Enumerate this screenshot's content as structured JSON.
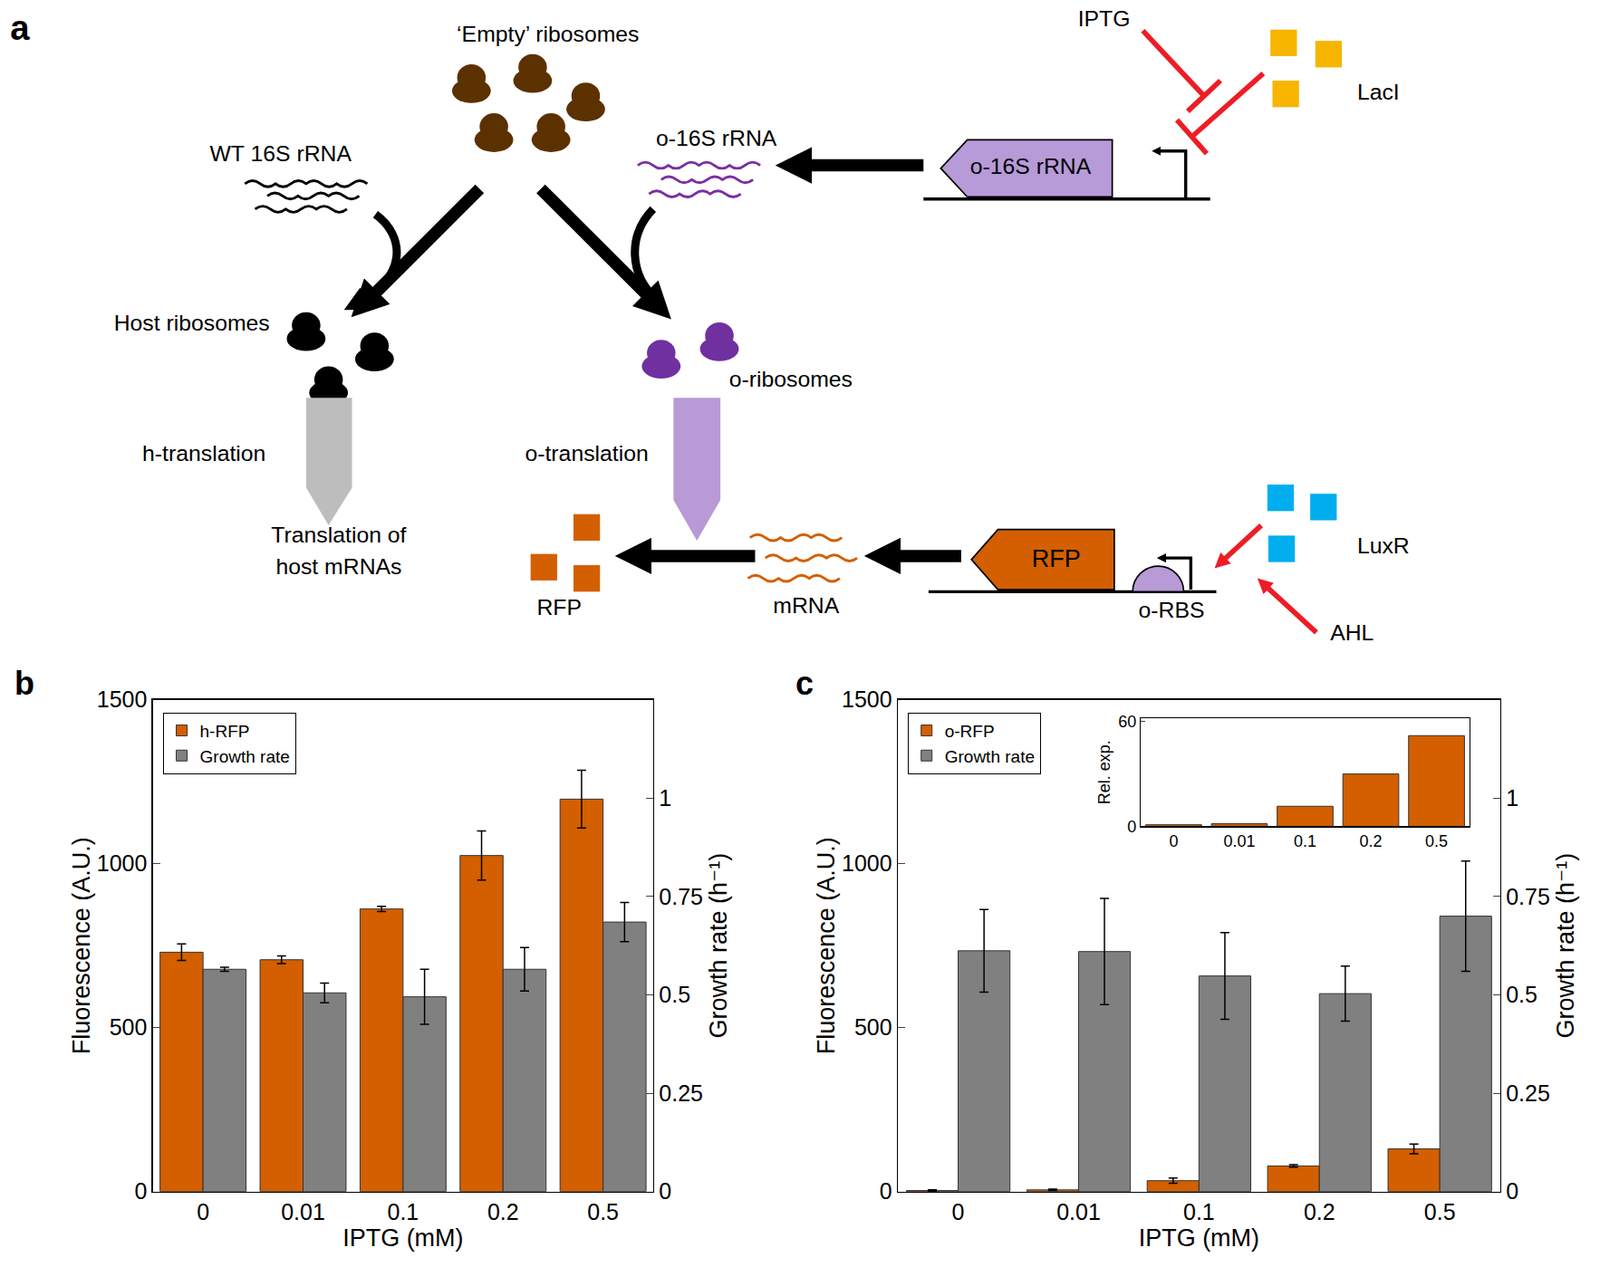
{
  "panel_a": {
    "panel_label": "a",
    "empty_ribosomes": "‘Empty’ ribosomes",
    "wt_rrna": "WT 16S rRNA",
    "o_rrna": "o-16S rRNA",
    "o_rrna_gene": "o-16S rRNA",
    "iptg": "IPTG",
    "laci": "LacI",
    "host_ribosomes": "Host ribosomes",
    "o_ribosomes": "o-ribosomes",
    "h_translation": "h-translation",
    "o_translation": "o-translation",
    "host_output": [
      "Translation of",
      "host mRNAs"
    ],
    "rfp_gene": "RFP",
    "rfp_protein": "RFP",
    "mrna": "mRNA",
    "o_rbs": "o-RBS",
    "luxr": "LuxR",
    "ahl": "AHL"
  },
  "chart_data": [
    {
      "type": "bar",
      "title": "b",
      "categories": [
        "0",
        "0.01",
        "0.1",
        "0.2",
        "0.5"
      ],
      "x_label": "IPTG (mM)",
      "y_label": "Fluorescence (A.U.)",
      "y2_label": "Growth rate (h⁻¹)",
      "ylim": [
        0,
        1500
      ],
      "yticks": [
        0,
        500,
        1000,
        1500
      ],
      "y2lim": [
        0,
        1.25
      ],
      "y2ticks": [
        0,
        0.25,
        0.5,
        0.75,
        1
      ],
      "legend": "upper left",
      "grid": false,
      "series": [
        {
          "name": "h-RFP",
          "color": "#d35f00",
          "values": [
            730,
            707,
            862,
            1025,
            1197
          ],
          "error": [
            25,
            12,
            8,
            75,
            88
          ]
        },
        {
          "name": "Growth rate",
          "color": "#808080",
          "axis": "y2",
          "values": [
            0.565,
            0.505,
            0.495,
            0.565,
            0.685
          ],
          "error": [
            0.005,
            0.025,
            0.07,
            0.055,
            0.05
          ]
        }
      ]
    },
    {
      "type": "bar",
      "title": "c",
      "categories": [
        "0",
        "0.01",
        "0.1",
        "0.2",
        "0.5"
      ],
      "x_label": "IPTG (mM)",
      "y_label": "Fluorescence (A.U.)",
      "y2_label": "Growth rate (h⁻¹)",
      "ylim": [
        0,
        1500
      ],
      "yticks": [
        0,
        500,
        1000,
        1500
      ],
      "y2lim": [
        0,
        1.25
      ],
      "y2ticks": [
        0,
        0.25,
        0.5,
        0.75,
        1
      ],
      "legend": "upper left",
      "grid": false,
      "series": [
        {
          "name": "o-RFP",
          "color": "#d35f00",
          "values": [
            3,
            5,
            33,
            78,
            130
          ],
          "error": [
            2,
            2,
            8,
            4,
            15
          ]
        },
        {
          "name": "Growth rate",
          "color": "#808080",
          "axis": "y2",
          "values": [
            0.612,
            0.61,
            0.548,
            0.503,
            0.7
          ],
          "error": [
            0.105,
            0.135,
            0.11,
            0.07,
            0.14
          ]
        }
      ]
    },
    {
      "type": "bar",
      "categories": [
        "0",
        "0.01",
        "0.1",
        "0.2",
        "0.5"
      ],
      "y_label": "Rel. exp.",
      "ylim": [
        0,
        62
      ],
      "yticks": [
        0,
        60
      ],
      "color": "#d35f00",
      "grid": false,
      "values": [
        0.9,
        1.5,
        11.5,
        30,
        52
      ]
    }
  ]
}
